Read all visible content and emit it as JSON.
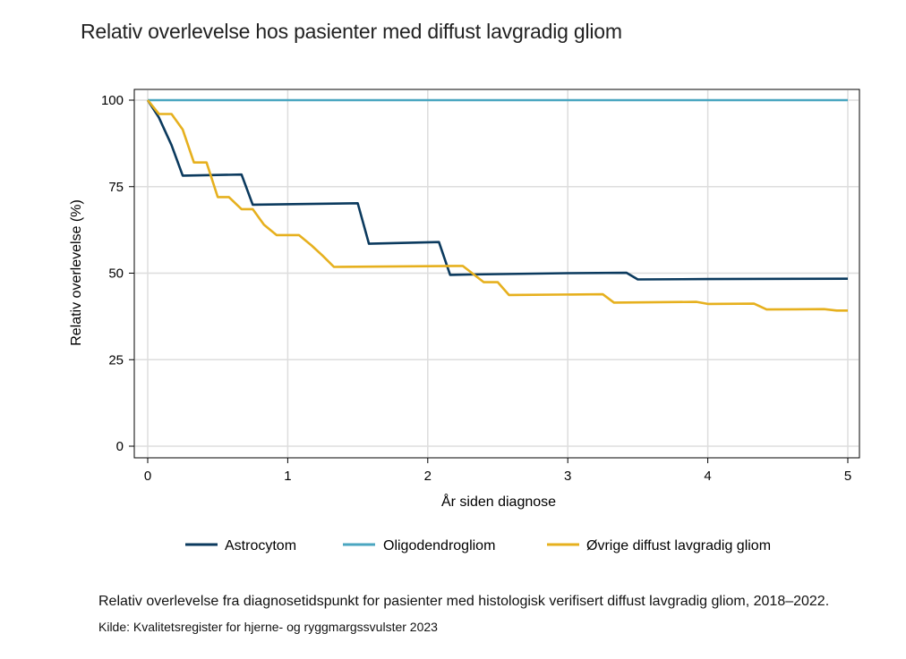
{
  "title": "Relativ overlevelse hos pasienter med diffust lavgradig gliom",
  "caption": "Relativ overlevelse fra diagnosetidspunkt for pasienter med histologisk verifisert diffust lavgradig gliom, 2018–2022.",
  "source": "Kilde: Kvalitetsregister for hjerne- og ryggmargssvulster 2023",
  "chart_data": {
    "type": "line",
    "title": "Relativ overlevelse hos pasienter med diffust lavgradig gliom",
    "xlabel": "År siden diagnose",
    "ylabel": "Relativ overlevelse (%)",
    "xlim": [
      0,
      5
    ],
    "ylim": [
      0,
      100
    ],
    "xticks": [
      0,
      1,
      2,
      3,
      4,
      5
    ],
    "yticks": [
      0,
      25,
      50,
      75,
      100
    ],
    "grid": true,
    "legend_position": "bottom",
    "series": [
      {
        "name": "Astrocytom",
        "color": "#0b3a5e",
        "points": [
          [
            0,
            100
          ],
          [
            0.08,
            95
          ],
          [
            0.17,
            87
          ],
          [
            0.25,
            78.2
          ],
          [
            0.67,
            78.5
          ],
          [
            0.75,
            69.8
          ],
          [
            1.5,
            70.2
          ],
          [
            1.58,
            58.5
          ],
          [
            2.08,
            59
          ],
          [
            2.16,
            49.5
          ],
          [
            2.3,
            49.6
          ],
          [
            3.0,
            50.0
          ],
          [
            3.42,
            50.1
          ],
          [
            3.5,
            48.2
          ],
          [
            4.0,
            48.3
          ],
          [
            5.0,
            48.4
          ]
        ]
      },
      {
        "name": "Oligodendrogliom",
        "color": "#4aa6c0",
        "points": [
          [
            0,
            100
          ],
          [
            5,
            100
          ]
        ]
      },
      {
        "name": "Øvrige diffust lavgradig gliom",
        "color": "#e6b01e",
        "points": [
          [
            0,
            100
          ],
          [
            0.08,
            96
          ],
          [
            0.17,
            96
          ],
          [
            0.25,
            91.5
          ],
          [
            0.33,
            82
          ],
          [
            0.42,
            82
          ],
          [
            0.5,
            72
          ],
          [
            0.58,
            72
          ],
          [
            0.67,
            68.5
          ],
          [
            0.75,
            68.5
          ],
          [
            0.83,
            64
          ],
          [
            0.92,
            61
          ],
          [
            1.08,
            61
          ],
          [
            1.17,
            58
          ],
          [
            1.25,
            55
          ],
          [
            1.33,
            51.8
          ],
          [
            2.25,
            52.1
          ],
          [
            2.4,
            47.4
          ],
          [
            2.5,
            47.4
          ],
          [
            2.58,
            43.7
          ],
          [
            3.25,
            43.9
          ],
          [
            3.33,
            41.5
          ],
          [
            3.92,
            41.7
          ],
          [
            4.0,
            41.1
          ],
          [
            4.33,
            41.2
          ],
          [
            4.42,
            39.5
          ],
          [
            4.83,
            39.6
          ],
          [
            4.92,
            39.2
          ],
          [
            5.0,
            39.2
          ]
        ]
      }
    ]
  }
}
